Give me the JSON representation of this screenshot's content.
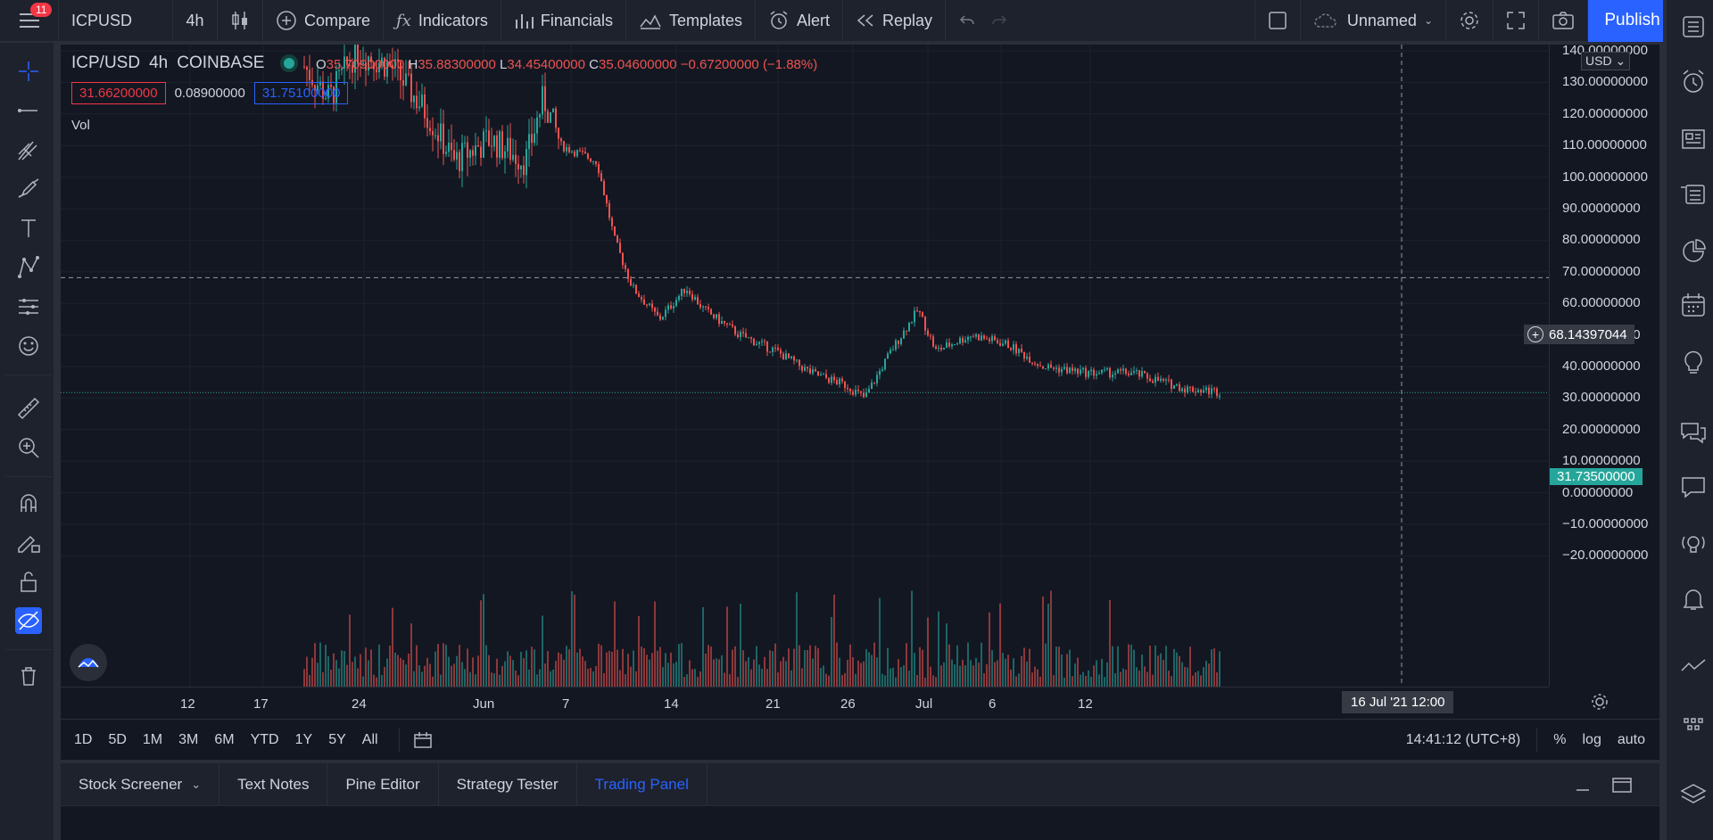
{
  "topbar": {
    "notification_count": "11",
    "symbol": "ICPUSD",
    "interval": "4h",
    "compare": "Compare",
    "indicators": "Indicators",
    "financials": "Financials",
    "templates": "Templates",
    "alert": "Alert",
    "replay": "Replay",
    "layout_name": "Unnamed",
    "publish": "Publish"
  },
  "legend": {
    "symbol": "ICP/USD",
    "interval": "4h",
    "exchange": "COINBASE",
    "open_label": "O",
    "open": "35.70900000",
    "high_label": "H",
    "high": "35.88300000",
    "low_label": "L",
    "low": "34.45400000",
    "close_label": "C",
    "close": "35.04600000",
    "change": "−0.67200000 (−1.88%)",
    "bid": "31.66200000",
    "spread": "0.08900000",
    "ask": "31.75100000",
    "volume_label": "Vol"
  },
  "price_axis": {
    "currency": "USD",
    "ticks": [
      "140.00000000",
      "130.00000000",
      "120.00000000",
      "110.00000000",
      "100.00000000",
      "90.00000000",
      "80.00000000",
      "70.00000000",
      "60.00000000",
      "50.00000000",
      "40.00000000",
      "30.00000000",
      "20.00000000",
      "10.00000000",
      "0.00000000",
      "−10.00000000",
      "−20.00000000"
    ],
    "last_price": "31.73500000",
    "crosshair_price": "68.14397044"
  },
  "time_axis": {
    "ticks": [
      "12",
      "17",
      "24",
      "Jun",
      "7",
      "14",
      "21",
      "26",
      "Jul",
      "6",
      "12"
    ],
    "crosshair_time": "16 Jul '21   12:00"
  },
  "range_bar": {
    "ranges": [
      "1D",
      "5D",
      "1M",
      "3M",
      "6M",
      "YTD",
      "1Y",
      "5Y",
      "All"
    ],
    "clock": "14:41:12 (UTC+8)",
    "percent": "%",
    "log": "log",
    "auto": "auto"
  },
  "bottom_panel": {
    "tabs": [
      "Stock Screener",
      "Text Notes",
      "Pine Editor",
      "Strategy Tester",
      "Trading Panel"
    ]
  },
  "colors": {
    "up": "#26a69a",
    "down": "#ef5350",
    "accent": "#2962ff",
    "background": "#131722"
  }
}
